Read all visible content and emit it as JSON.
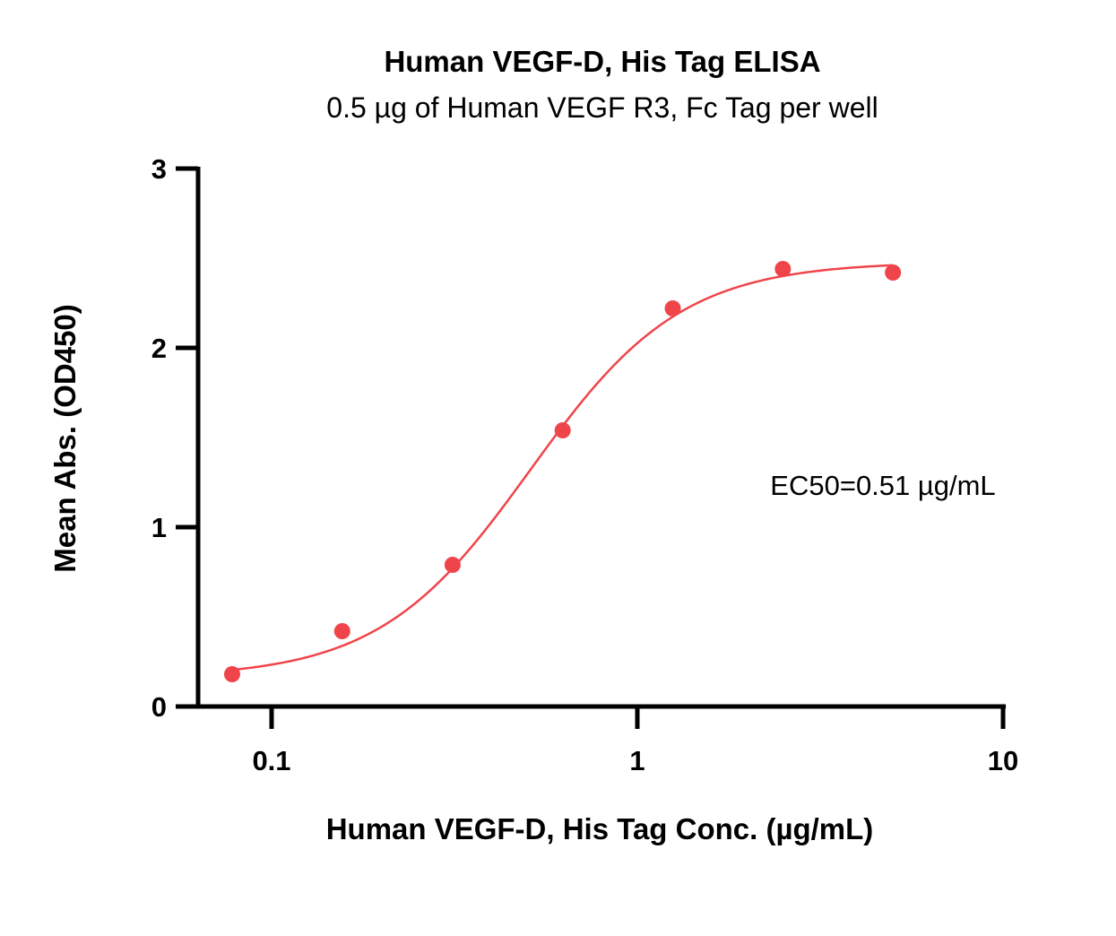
{
  "chart_data": {
    "type": "scatter",
    "title": "Human VEGF-D, His Tag ELISA",
    "subtitle": "0.5 µg of Human VEGF R3, Fc Tag per well",
    "xlabel": "Human VEGF-D, His Tag Conc. (µg/mL)",
    "ylabel": "Mean Abs. (OD450)",
    "x_scale": "log",
    "xlim": [
      0.06,
      10
    ],
    "ylim": [
      0,
      3
    ],
    "x_ticks": [
      {
        "value": 0.1,
        "label": "0.1"
      },
      {
        "value": 1,
        "label": "1"
      },
      {
        "value": 10,
        "label": "10"
      }
    ],
    "y_ticks": [
      {
        "value": 0,
        "label": "0"
      },
      {
        "value": 1,
        "label": "1"
      },
      {
        "value": 2,
        "label": "2"
      },
      {
        "value": 3,
        "label": "3"
      }
    ],
    "grid": false,
    "legend": "none",
    "color": "#f0444b",
    "points": [
      {
        "x": 0.078,
        "y": 0.18
      },
      {
        "x": 0.156,
        "y": 0.42
      },
      {
        "x": 0.3125,
        "y": 0.79
      },
      {
        "x": 0.625,
        "y": 1.54
      },
      {
        "x": 1.25,
        "y": 2.22
      },
      {
        "x": 2.5,
        "y": 2.44
      },
      {
        "x": 5,
        "y": 2.42
      }
    ],
    "fit": {
      "type": "4PL",
      "bottom": 0.16,
      "top": 2.48,
      "ec50": 0.51,
      "hill": 2.1
    },
    "annotation": "EC50=0.51 µg/mL"
  }
}
